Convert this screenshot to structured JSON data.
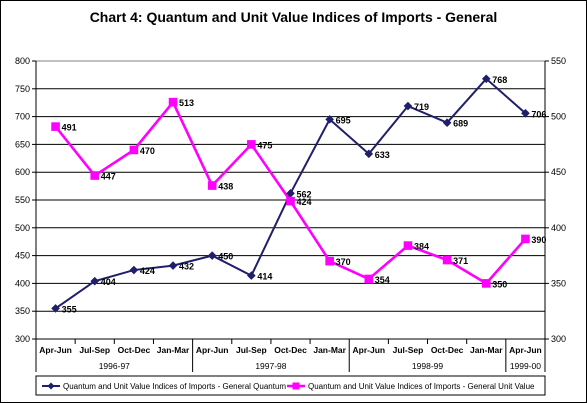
{
  "chart_data": {
    "type": "line",
    "title": "Chart 4: Quantum and Unit Value Indices of Imports - General",
    "categories": [
      "Apr-Jun",
      "Jul-Sep",
      "Oct-Dec",
      "Jan-Mar",
      "Apr-Jun",
      "Jul-Sep",
      "Oct-Dec",
      "Jan-Mar",
      "Apr-Jun",
      "Jul-Sep",
      "Oct-Dec",
      "Jan-Mar",
      "Apr-Jun"
    ],
    "year_groups": [
      {
        "label": "1996-97",
        "start": 0,
        "end": 3
      },
      {
        "label": "1997-98",
        "start": 4,
        "end": 7
      },
      {
        "label": "1998-99",
        "start": 8,
        "end": 11
      },
      {
        "label": "1999-00",
        "start": 12,
        "end": 12
      }
    ],
    "y_left": {
      "min": 300,
      "max": 800,
      "step": 50,
      "ticks": [
        "300",
        "350",
        "400",
        "450",
        "500",
        "550",
        "600",
        "650",
        "700",
        "750",
        "800"
      ]
    },
    "y_right": {
      "min": 300,
      "max": 550,
      "step": 50,
      "ticks": [
        "300",
        "350",
        "400",
        "450",
        "500",
        "550"
      ]
    },
    "series": [
      {
        "name": "Quantum and Unit Value Indices of Imports - General Quantum",
        "axis": "left",
        "color": "#1f1f6b",
        "marker": "diamond",
        "values": [
          355,
          404,
          424,
          432,
          450,
          414,
          562,
          695,
          633,
          719,
          689,
          768,
          706
        ],
        "labels": [
          "355",
          "404",
          "424",
          "432",
          "450",
          "414",
          "562",
          "695",
          "633",
          "719",
          "689",
          "768",
          "706"
        ]
      },
      {
        "name": "Quantum and Unit Value Indices of Imports - General Unit Value",
        "axis": "right",
        "color": "#ff00ff",
        "marker": "square",
        "values": [
          491,
          447,
          470,
          513,
          438,
          475,
          424,
          370,
          354,
          384,
          371,
          350,
          390
        ],
        "labels": [
          "491",
          "447",
          "470",
          "513",
          "438",
          "475",
          "424",
          "370",
          "354",
          "384",
          "371",
          "350",
          "390"
        ]
      }
    ],
    "grid": "horizontal",
    "legend_position": "bottom"
  }
}
